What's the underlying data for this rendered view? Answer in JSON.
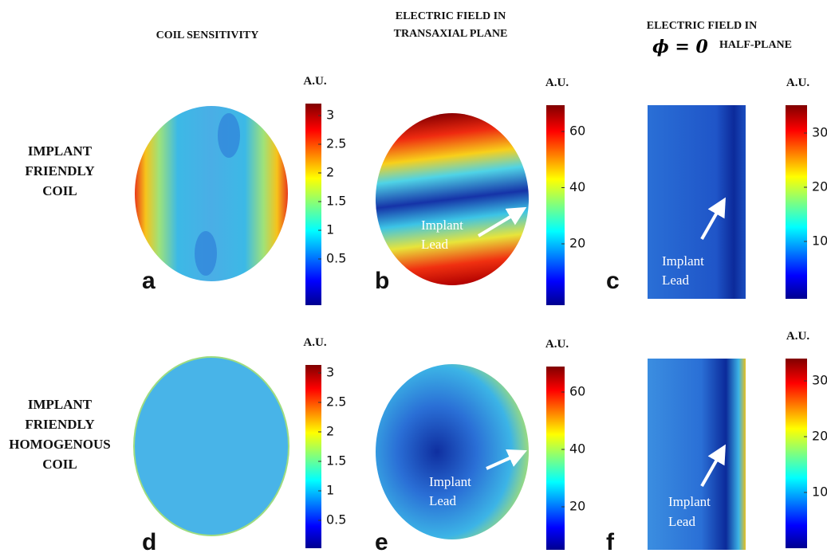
{
  "header": {
    "columns": [
      {
        "lines": [
          "COIL SENSITIVITY"
        ]
      },
      {
        "lines": [
          "ELECTRIC FIELD IN",
          "TRANSAXIAL PLANE"
        ]
      },
      {
        "lines": [
          "ELECTRIC FIELD IN"
        ],
        "symbol": "ϕ = 0",
        "rest": "HALF-PLANE"
      }
    ]
  },
  "rows": [
    {
      "label_lines": [
        "IMPLANT",
        "FRIENDLY",
        "COIL"
      ],
      "panels": [
        {
          "letter": "a",
          "colorbar": {
            "unit": "A.U.",
            "ticks": [
              3,
              2.5,
              2,
              1.5,
              1,
              0.5
            ]
          }
        },
        {
          "letter": "b",
          "annotation": [
            "Implant",
            "Lead"
          ],
          "colorbar": {
            "unit": "A.U.",
            "ticks": [
              60,
              40,
              20
            ]
          }
        },
        {
          "letter": "c",
          "annotation": [
            "Implant",
            "Lead"
          ],
          "colorbar": {
            "unit": "A.U.",
            "ticks": [
              30,
              20,
              10
            ]
          }
        }
      ]
    },
    {
      "label_lines": [
        "IMPLANT",
        "FRIENDLY",
        "HOMOGENOUS",
        "COIL"
      ],
      "panels": [
        {
          "letter": "d",
          "colorbar": {
            "unit": "A.U.",
            "ticks": [
              3,
              2.5,
              2,
              1.5,
              1,
              0.5
            ]
          }
        },
        {
          "letter": "e",
          "annotation": [
            "Implant",
            "Lead"
          ],
          "colorbar": {
            "unit": "A.U.",
            "ticks": [
              60,
              40,
              20
            ]
          }
        },
        {
          "letter": "f",
          "annotation": [
            "Implant",
            "Lead"
          ],
          "colorbar": {
            "unit": "A.U.",
            "ticks": [
              30,
              20,
              10
            ]
          }
        }
      ]
    }
  ]
}
